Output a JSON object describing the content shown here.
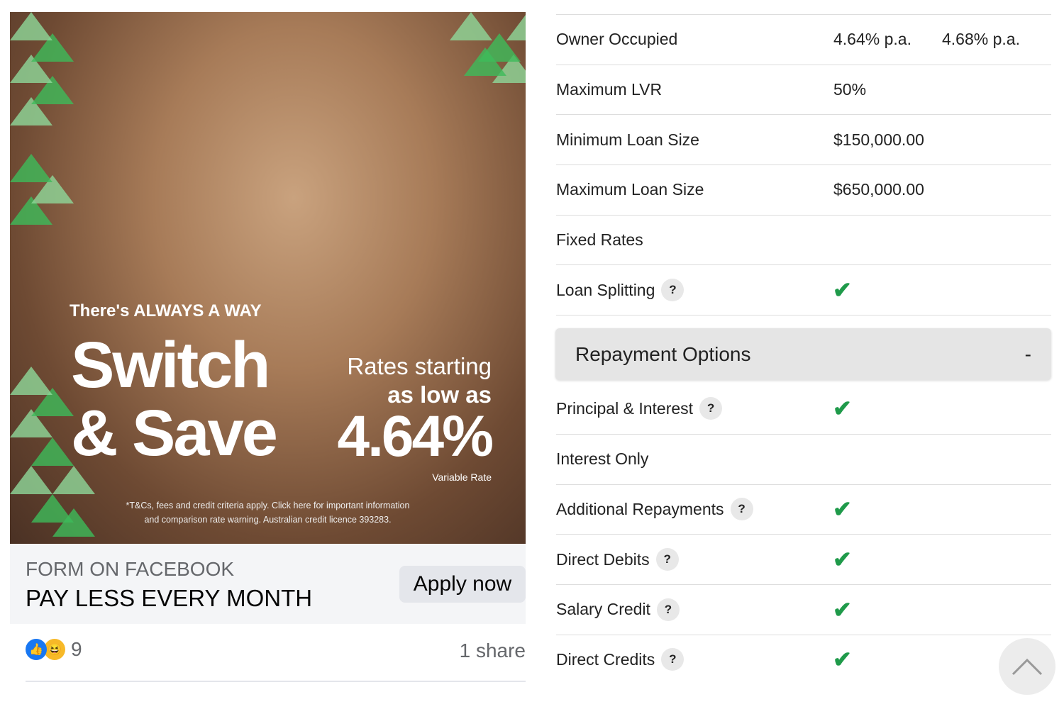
{
  "ad": {
    "tagline": "There's ALWAYS A WAY",
    "headline_1": "Switch",
    "headline_2": "& Save",
    "rates_1": "Rates starting",
    "rates_2": "as low as",
    "rate": "4.64%",
    "rate_type": "Variable Rate",
    "terms_1": "*T&Cs, fees and credit criteria apply. Click here for important information",
    "terms_2": "and comparison rate warning.  Australian credit licence 393283."
  },
  "cta": {
    "source": "FORM ON FACEBOOK",
    "headline": "PAY LESS EVERY MONTH",
    "button": "Apply now"
  },
  "engagement": {
    "reactions": "9",
    "shares": "1 share",
    "reaction_icons": [
      "like-icon",
      "haha-icon"
    ]
  },
  "table": {
    "rows": [
      {
        "label": "Owner Occupied",
        "v1": "4.64% p.a.",
        "v2": "4.68% p.a."
      },
      {
        "label": "Maximum LVR",
        "v1": "50%"
      },
      {
        "label": "Minimum Loan Size",
        "v1": "$150,000.00"
      },
      {
        "label": "Maximum Loan Size",
        "v1": "$650,000.00"
      },
      {
        "label": "Fixed Rates"
      },
      {
        "label": "Loan Splitting",
        "help": "?",
        "check": true
      }
    ],
    "section": {
      "title": "Repayment Options",
      "toggle": "-"
    },
    "rows2": [
      {
        "label": "Principal & Interest",
        "help": "?",
        "check": true
      },
      {
        "label": "Interest Only"
      },
      {
        "label": "Additional Repayments",
        "help": "?",
        "check": true
      },
      {
        "label": "Direct Debits",
        "help": "?",
        "check": true
      },
      {
        "label": "Salary Credit",
        "help": "?",
        "check": true
      },
      {
        "label": "Direct Credits",
        "help": "?",
        "check": true
      }
    ]
  },
  "colors": {
    "check": "#1f9a4a",
    "ad_green": "#3dbb5a"
  }
}
